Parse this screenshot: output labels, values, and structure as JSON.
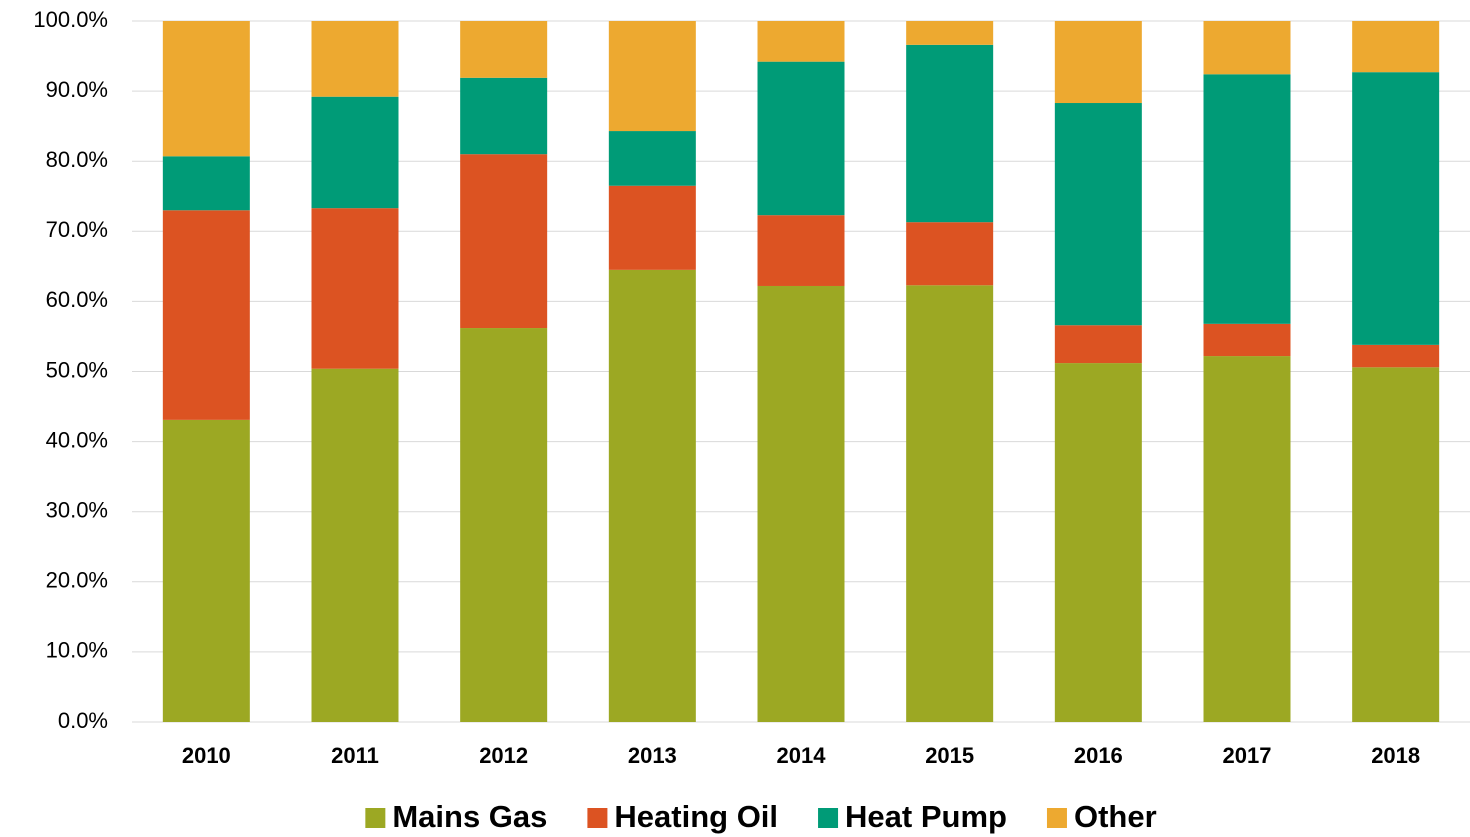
{
  "chart_data": {
    "type": "stacked_bar",
    "categories": [
      "2010",
      "2011",
      "2012",
      "2013",
      "2014",
      "2015",
      "2016",
      "2017",
      "2018"
    ],
    "series": [
      {
        "name": "Mains Gas",
        "color": "#9ca823",
        "values": [
          43.1,
          50.4,
          56.2,
          64.5,
          62.2,
          62.3,
          51.2,
          52.2,
          50.6
        ]
      },
      {
        "name": "Heating Oil",
        "color": "#dc5322",
        "values": [
          29.9,
          22.9,
          24.8,
          12.0,
          10.1,
          9.0,
          5.4,
          4.6,
          3.2
        ]
      },
      {
        "name": "Heat Pump",
        "color": "#009b77",
        "values": [
          7.7,
          15.9,
          10.9,
          7.8,
          21.9,
          25.3,
          31.7,
          35.6,
          38.9
        ]
      },
      {
        "name": "Other",
        "color": "#eda930",
        "values": [
          19.3,
          10.8,
          8.1,
          15.7,
          5.8,
          3.4,
          11.7,
          7.6,
          7.3
        ]
      }
    ],
    "ylim": [
      0,
      100
    ],
    "yticks": [
      {
        "value": 0,
        "label": "0.0%"
      },
      {
        "value": 10,
        "label": "10.0%"
      },
      {
        "value": 20,
        "label": "20.0%"
      },
      {
        "value": 30,
        "label": "30.0%"
      },
      {
        "value": 40,
        "label": "40.0%"
      },
      {
        "value": 50,
        "label": "50.0%"
      },
      {
        "value": 60,
        "label": "60.0%"
      },
      {
        "value": 70,
        "label": "70.0%"
      },
      {
        "value": 80,
        "label": "80.0%"
      },
      {
        "value": 90,
        "label": "90.0%"
      },
      {
        "value": 100,
        "label": "100.0%"
      }
    ],
    "grid": true,
    "legend": "bottom"
  }
}
